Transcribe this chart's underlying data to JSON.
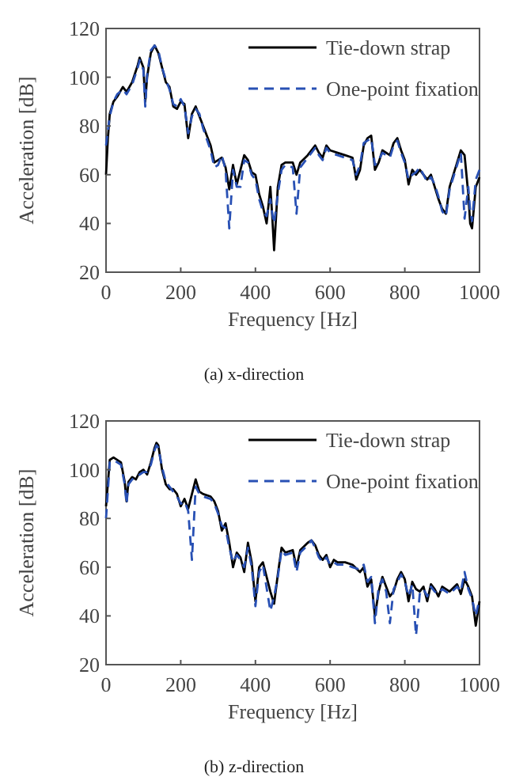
{
  "chart_data": [
    {
      "type": "line",
      "xlabel": "Frequency [Hz]",
      "ylabel": "Acceleration [dB]",
      "annotations": [
        "(a) x-direction"
      ],
      "xlim": [
        0,
        1000
      ],
      "ylim": [
        20,
        120
      ],
      "xticks": [
        0,
        200,
        400,
        600,
        800,
        1000
      ],
      "yticks": [
        20,
        40,
        60,
        80,
        100,
        120
      ],
      "legend": "top right",
      "x": [
        0,
        5,
        10,
        20,
        30,
        45,
        55,
        70,
        85,
        90,
        100,
        105,
        110,
        120,
        130,
        140,
        150,
        160,
        170,
        180,
        190,
        200,
        210,
        220,
        230,
        240,
        250,
        260,
        280,
        290,
        300,
        310,
        320,
        330,
        340,
        350,
        360,
        370,
        380,
        390,
        400,
        410,
        420,
        430,
        440,
        445,
        450,
        460,
        470,
        480,
        500,
        510,
        520,
        540,
        560,
        570,
        580,
        590,
        600,
        620,
        640,
        660,
        670,
        680,
        690,
        700,
        710,
        720,
        730,
        740,
        760,
        770,
        780,
        790,
        800,
        810,
        820,
        830,
        840,
        860,
        870,
        880,
        890,
        900,
        910,
        920,
        940,
        950,
        960,
        970,
        975,
        980,
        990,
        1000
      ],
      "series": [
        {
          "name": "Tie-down strap",
          "color": "#000000",
          "line_style": "solid",
          "values": [
            60,
            75,
            85,
            90,
            92,
            96,
            94,
            98,
            105,
            108,
            104,
            90,
            100,
            110,
            113,
            110,
            104,
            98,
            96,
            88,
            87,
            90,
            89,
            75,
            85,
            88,
            84,
            80,
            72,
            65,
            66,
            67,
            63,
            54,
            64,
            56,
            62,
            68,
            66,
            61,
            60,
            52,
            47,
            40,
            55,
            43,
            29,
            55,
            64,
            65,
            65,
            60,
            65,
            68,
            72,
            69,
            67,
            72,
            70,
            69,
            68,
            67,
            58,
            62,
            72,
            75,
            76,
            62,
            65,
            70,
            68,
            73,
            75,
            70,
            66,
            56,
            62,
            60,
            62,
            58,
            60,
            55,
            50,
            46,
            44,
            55,
            65,
            70,
            68,
            52,
            40,
            38,
            55,
            59
          ]
        },
        {
          "name": "One-point fixation",
          "color": "#2850b4",
          "line_style": "dashed",
          "values": [
            72,
            78,
            84,
            90,
            93,
            95,
            93,
            97,
            104,
            107,
            103,
            88,
            101,
            111,
            113,
            111,
            104,
            99,
            95,
            89,
            88,
            91,
            88,
            77,
            84,
            87,
            85,
            79,
            70,
            63,
            64,
            68,
            62,
            38,
            62,
            55,
            55,
            66,
            65,
            60,
            58,
            50,
            45,
            43,
            50,
            44,
            40,
            52,
            62,
            64,
            63,
            44,
            63,
            67,
            71,
            68,
            66,
            71,
            69,
            68,
            67,
            66,
            60,
            64,
            73,
            74,
            75,
            64,
            66,
            69,
            67,
            72,
            74,
            69,
            65,
            58,
            60,
            61,
            63,
            57,
            59,
            56,
            51,
            45,
            43,
            54,
            64,
            69,
            42,
            55,
            45,
            41,
            58,
            62
          ]
        }
      ]
    },
    {
      "type": "line",
      "xlabel": "Frequency [Hz]",
      "ylabel": "Acceleration [dB]",
      "annotations": [
        "(b) z-direction"
      ],
      "xlim": [
        0,
        1000
      ],
      "ylim": [
        20,
        120
      ],
      "xticks": [
        0,
        200,
        400,
        600,
        800,
        1000
      ],
      "yticks": [
        20,
        40,
        60,
        80,
        100,
        120
      ],
      "legend": "top right",
      "x": [
        0,
        10,
        20,
        40,
        50,
        55,
        60,
        70,
        80,
        90,
        100,
        110,
        120,
        130,
        135,
        140,
        150,
        160,
        170,
        180,
        190,
        200,
        210,
        220,
        230,
        240,
        250,
        260,
        280,
        290,
        300,
        310,
        320,
        330,
        340,
        350,
        360,
        370,
        380,
        390,
        400,
        410,
        420,
        440,
        450,
        460,
        470,
        480,
        500,
        510,
        520,
        540,
        550,
        560,
        570,
        580,
        590,
        600,
        610,
        620,
        640,
        660,
        680,
        690,
        700,
        710,
        720,
        730,
        740,
        750,
        760,
        770,
        780,
        790,
        800,
        810,
        820,
        830,
        840,
        850,
        860,
        870,
        880,
        890,
        900,
        920,
        940,
        950,
        960,
        970,
        980,
        990,
        1000
      ],
      "series": [
        {
          "name": "Tie-down strap",
          "color": "#000000",
          "line_style": "solid",
          "values": [
            85,
            104,
            105,
            103,
            95,
            87,
            95,
            97,
            96,
            99,
            100,
            98,
            103,
            109,
            111,
            110,
            100,
            94,
            92,
            92,
            90,
            85,
            88,
            84,
            90,
            96,
            91,
            90,
            89,
            87,
            83,
            75,
            78,
            70,
            60,
            66,
            64,
            58,
            70,
            62,
            46,
            60,
            62,
            50,
            45,
            57,
            68,
            66,
            67,
            60,
            67,
            70,
            71,
            69,
            65,
            63,
            65,
            60,
            63,
            62,
            62,
            61,
            58,
            60,
            52,
            55,
            40,
            50,
            56,
            52,
            48,
            50,
            55,
            58,
            55,
            46,
            54,
            51,
            50,
            52,
            46,
            53,
            51,
            48,
            52,
            50,
            53,
            49,
            55,
            52,
            48,
            36,
            46
          ]
        },
        {
          "name": "One-point fixation",
          "color": "#2850b4",
          "line_style": "dashed",
          "values": [
            80,
            103,
            104,
            102,
            94,
            86,
            94,
            96,
            97,
            98,
            99,
            99,
            102,
            108,
            110,
            109,
            101,
            95,
            93,
            91,
            89,
            86,
            87,
            83,
            63,
            93,
            90,
            89,
            88,
            86,
            82,
            77,
            76,
            68,
            62,
            65,
            63,
            60,
            68,
            60,
            44,
            58,
            61,
            42,
            48,
            56,
            67,
            65,
            66,
            58,
            66,
            69,
            71,
            68,
            64,
            62,
            64,
            61,
            62,
            61,
            61,
            60,
            59,
            61,
            54,
            56,
            37,
            52,
            55,
            50,
            37,
            51,
            54,
            57,
            54,
            48,
            53,
            32,
            49,
            51,
            48,
            52,
            50,
            49,
            51,
            49,
            52,
            50,
            58,
            51,
            47,
            40,
            47
          ]
        }
      ]
    }
  ]
}
